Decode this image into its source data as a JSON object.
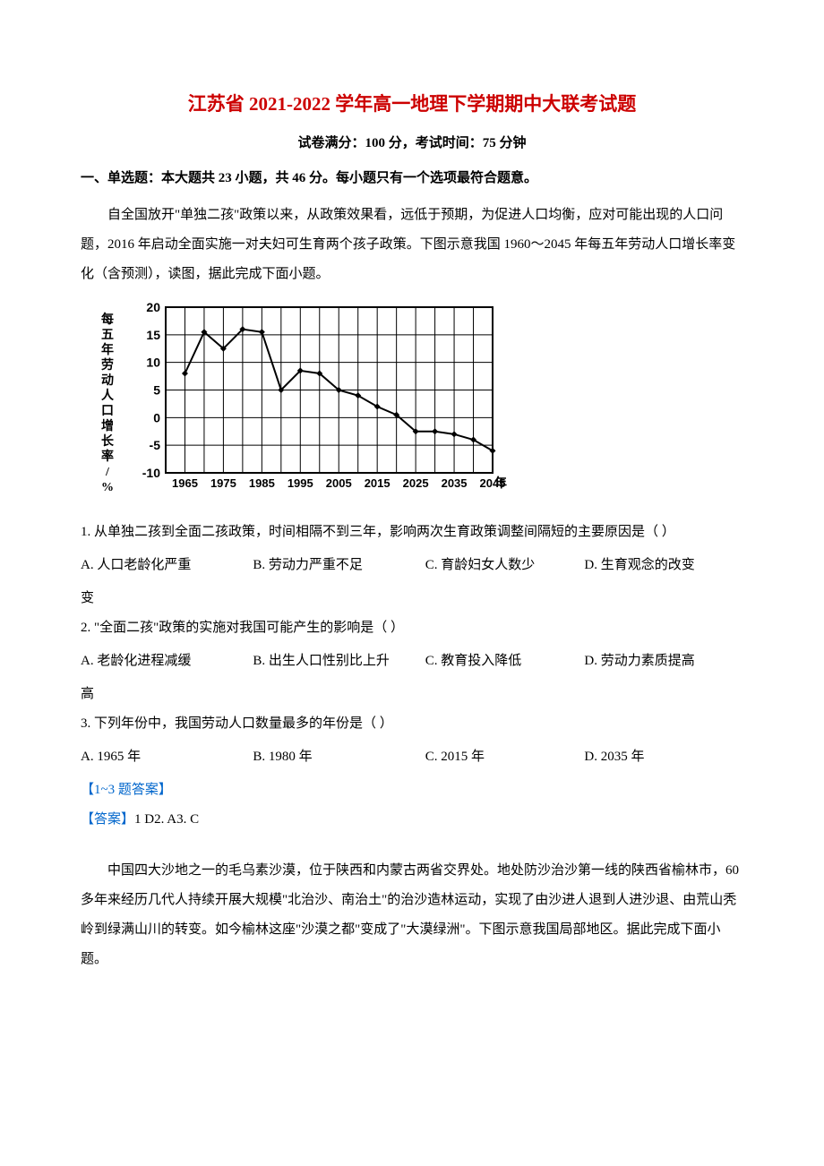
{
  "title": {
    "text": "江苏省 2021-2022 学年高一地理下学期期中大联考试题",
    "color": "#cc0000"
  },
  "subtitle": "试卷满分：100 分，考试时间：75 分钟",
  "section_heading": "一、单选题：本大题共 23 小题，共 46 分。每小题只有一个选项最符合题意。",
  "passage1": "自全国放开\"单独二孩\"政策以来，从政策效果看，远低于预期，为促进人口均衡，应对可能出现的人口问题，2016 年启动全面实施一对夫妇可生育两个孩子政策。下图示意我国 1960～2045 年每五年劳动人口增长率变化（含预测），读图，据此完成下面小题。",
  "chart": {
    "type": "line",
    "x_label": "年",
    "y_label": "每五年劳动人口增长率/%",
    "x_ticks": [
      "1965",
      "1975",
      "1985",
      "1995",
      "2005",
      "2015",
      "2025",
      "2035",
      "2045"
    ],
    "y_ticks": [
      -10,
      -5,
      0,
      5,
      10,
      15,
      20
    ],
    "ylim": [
      -10,
      20
    ],
    "x_positions": [
      1965,
      1970,
      1975,
      1980,
      1985,
      1990,
      1995,
      2000,
      2005,
      2010,
      2015,
      2020,
      2025,
      2030,
      2035,
      2040,
      2045
    ],
    "y_values": [
      8,
      15.5,
      12.5,
      16,
      15.5,
      5,
      8.5,
      8,
      5,
      4,
      2,
      0.5,
      -2.5,
      -2.5,
      -3,
      -4,
      -6
    ],
    "line_color": "#000000",
    "marker": "diamond",
    "marker_color": "#000000",
    "grid_color": "#000000",
    "background_color": "#ffffff",
    "border_width": 2,
    "line_width": 2,
    "marker_size": 7
  },
  "q1": {
    "text": "1. 从单独二孩到全面二孩政策，时间相隔不到三年，影响两次生育政策调整间隔短的主要原因是（    ）",
    "options": {
      "A": "A.  人口老龄化严重",
      "B": "B.  劳动力严重不足",
      "C": "C.  育龄妇女人数少",
      "D": "D.  生育观念的改变"
    },
    "overflow": "变"
  },
  "q2": {
    "text": "2.  \"全面二孩\"政策的实施对我国可能产生的影响是（    ）",
    "options": {
      "A": "A.  老龄化进程减缓",
      "B": "B.  出生人口性别比上升",
      "C": "C.  教育投入降低",
      "D": "D.  劳动力素质提高"
    },
    "overflow": "高"
  },
  "q3": {
    "text": "3.  下列年份中，我国劳动人口数量最多的年份是（    ）",
    "options": {
      "A": "A.  1965 年",
      "B": "B.  1980 年",
      "C": "C.  2015 年",
      "D": "D.  2035 年"
    }
  },
  "answer_block1": {
    "label": "【1~3 题答案】",
    "label_color": "#0066cc",
    "answer_prefix": "【答案】",
    "answer_prefix_color": "#0066cc",
    "answer_text": "1 D2.  A3.  C"
  },
  "passage2": "中国四大沙地之一的毛乌素沙漠，位于陕西和内蒙古两省交界处。地处防沙治沙第一线的陕西省榆林市，60 多年来经历几代人持续开展大规模\"北治沙、南治土\"的治沙造林运动，实现了由沙进人退到人进沙退、由荒山秃岭到绿满山川的转变。如今榆林这座\"沙漠之都\"变成了\"大漠绿洲\"。下图示意我国局部地区。据此完成下面小题。"
}
